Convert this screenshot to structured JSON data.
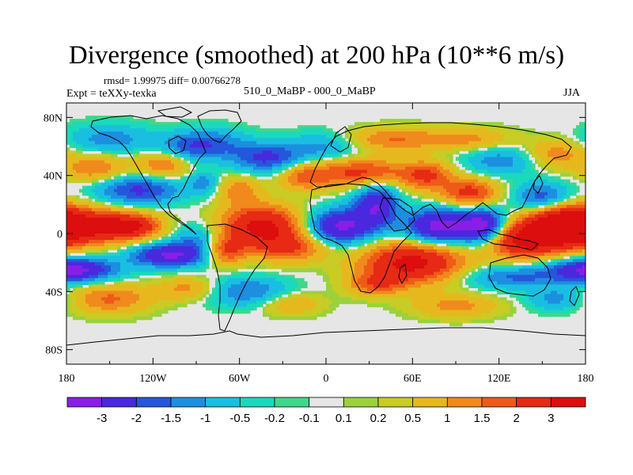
{
  "chart_data": {
    "type": "heatmap",
    "title": "Divergence (smoothed) at 200 hPa (10**6 m/s)",
    "stats_text": "rmsd= 1.99975 diff= 0.00766278",
    "experiment_text": "Expt = teXXy-texka",
    "subtitle": "510_0_MaBP - 000_0_MaBP",
    "season": "JJA",
    "xlim": [
      -180,
      180
    ],
    "ylim": [
      -90,
      90
    ],
    "x_ticks": [
      {
        "value": -180,
        "label": "180"
      },
      {
        "value": -120,
        "label": "120W"
      },
      {
        "value": -60,
        "label": "60W"
      },
      {
        "value": 0,
        "label": "0"
      },
      {
        "value": 60,
        "label": "60E"
      },
      {
        "value": 120,
        "label": "120E"
      },
      {
        "value": 180,
        "label": "180"
      }
    ],
    "y_ticks": [
      {
        "value": 80,
        "label": "80N"
      },
      {
        "value": 40,
        "label": "40N"
      },
      {
        "value": 0,
        "label": "0"
      },
      {
        "value": -40,
        "label": "40S"
      },
      {
        "value": -80,
        "label": "80S"
      }
    ],
    "colorbar": {
      "levels": [
        "-3",
        "-2",
        "-1.5",
        "-1",
        "-0.5",
        "-0.2",
        "-0.1",
        "0.1",
        "0.2",
        "0.5",
        "1",
        "1.5",
        "2",
        "3"
      ],
      "colors": [
        "#8a1ee6",
        "#4a28de",
        "#2457dc",
        "#1c8fe0",
        "#19bfe0",
        "#1ad9bc",
        "#3ed88a",
        "#e6e6e6",
        "#9ad23c",
        "#c8cc24",
        "#e6b81e",
        "#f08a1c",
        "#ef5a18",
        "#e62a14",
        "#dc0e0e"
      ]
    },
    "features": [
      {
        "lon": -170,
        "lat": 5,
        "value": 3.2,
        "rx": 40,
        "ry": 12
      },
      {
        "lon": -175,
        "lat": -25,
        "value": -3.4,
        "rx": 28,
        "ry": 8
      },
      {
        "lon": -110,
        "lat": -15,
        "value": -3.0,
        "rx": 25,
        "ry": 8
      },
      {
        "lon": -135,
        "lat": 5,
        "value": 2.2,
        "rx": 20,
        "ry": 8
      },
      {
        "lon": -150,
        "lat": -45,
        "value": 1.6,
        "rx": 28,
        "ry": 10
      },
      {
        "lon": -95,
        "lat": -38,
        "value": 1.3,
        "rx": 22,
        "ry": 8
      },
      {
        "lon": -90,
        "lat": -5,
        "value": -1.3,
        "rx": 18,
        "ry": 12
      },
      {
        "lon": -130,
        "lat": 30,
        "value": -2.2,
        "rx": 30,
        "ry": 10
      },
      {
        "lon": -160,
        "lat": 45,
        "value": 1.5,
        "rx": 22,
        "ry": 10
      },
      {
        "lon": -112,
        "lat": 48,
        "value": 1.7,
        "rx": 18,
        "ry": 10
      },
      {
        "lon": -100,
        "lat": 58,
        "value": -1.1,
        "rx": 20,
        "ry": 10
      },
      {
        "lon": -150,
        "lat": 65,
        "value": -1.3,
        "rx": 30,
        "ry": 10
      },
      {
        "lon": -45,
        "lat": 5,
        "value": 3.3,
        "rx": 28,
        "ry": 14
      },
      {
        "lon": -25,
        "lat": -10,
        "value": 1.8,
        "rx": 25,
        "ry": 10
      },
      {
        "lon": -70,
        "lat": -12,
        "value": 2.0,
        "rx": 14,
        "ry": 10
      },
      {
        "lon": -55,
        "lat": -40,
        "value": -1.6,
        "rx": 30,
        "ry": 10
      },
      {
        "lon": -25,
        "lat": -48,
        "value": 1.1,
        "rx": 22,
        "ry": 8
      },
      {
        "lon": -60,
        "lat": 30,
        "value": 1.3,
        "rx": 15,
        "ry": 10
      },
      {
        "lon": -40,
        "lat": 52,
        "value": -2.2,
        "rx": 25,
        "ry": 10
      },
      {
        "lon": -80,
        "lat": 62,
        "value": -1.6,
        "rx": 25,
        "ry": 10
      },
      {
        "lon": -15,
        "lat": 40,
        "value": 1.7,
        "rx": 18,
        "ry": 10
      },
      {
        "lon": -85,
        "lat": 35,
        "value": -1.2,
        "rx": 10,
        "ry": 8
      },
      {
        "lon": 10,
        "lat": 5,
        "value": -3.2,
        "rx": 22,
        "ry": 12
      },
      {
        "lon": 35,
        "lat": 20,
        "value": -2.8,
        "rx": 15,
        "ry": 15
      },
      {
        "lon": 25,
        "lat": 42,
        "value": 2.3,
        "rx": 30,
        "ry": 10
      },
      {
        "lon": 0,
        "lat": 60,
        "value": -1.2,
        "rx": 25,
        "ry": 10
      },
      {
        "lon": 45,
        "lat": 65,
        "value": 1.5,
        "rx": 35,
        "ry": 8
      },
      {
        "lon": 60,
        "lat": -20,
        "value": 3.4,
        "rx": 35,
        "ry": 14
      },
      {
        "lon": 35,
        "lat": -35,
        "value": 1.6,
        "rx": 20,
        "ry": 8
      },
      {
        "lon": 80,
        "lat": 5,
        "value": -3.5,
        "rx": 25,
        "ry": 12
      },
      {
        "lon": 70,
        "lat": 40,
        "value": 2.0,
        "rx": 18,
        "ry": 10
      },
      {
        "lon": 100,
        "lat": 28,
        "value": 2.3,
        "rx": 20,
        "ry": 10
      },
      {
        "lon": 110,
        "lat": 5,
        "value": -3.0,
        "rx": 15,
        "ry": 12
      },
      {
        "lon": 135,
        "lat": -5,
        "value": 3.0,
        "rx": 25,
        "ry": 12
      },
      {
        "lon": 165,
        "lat": 5,
        "value": 3.4,
        "rx": 25,
        "ry": 15
      },
      {
        "lon": 150,
        "lat": 25,
        "value": -2.0,
        "rx": 20,
        "ry": 10
      },
      {
        "lon": 120,
        "lat": 50,
        "value": -1.3,
        "rx": 25,
        "ry": 10
      },
      {
        "lon": 160,
        "lat": 55,
        "value": 1.3,
        "rx": 20,
        "ry": 10
      },
      {
        "lon": 130,
        "lat": -30,
        "value": -1.6,
        "rx": 35,
        "ry": 8
      },
      {
        "lon": 90,
        "lat": -50,
        "value": 1.2,
        "rx": 30,
        "ry": 8
      },
      {
        "lon": 160,
        "lat": -45,
        "value": -1.2,
        "rx": 20,
        "ry": 8
      },
      {
        "lon": 100,
        "lat": 65,
        "value": 1.1,
        "rx": 30,
        "ry": 8
      }
    ]
  }
}
